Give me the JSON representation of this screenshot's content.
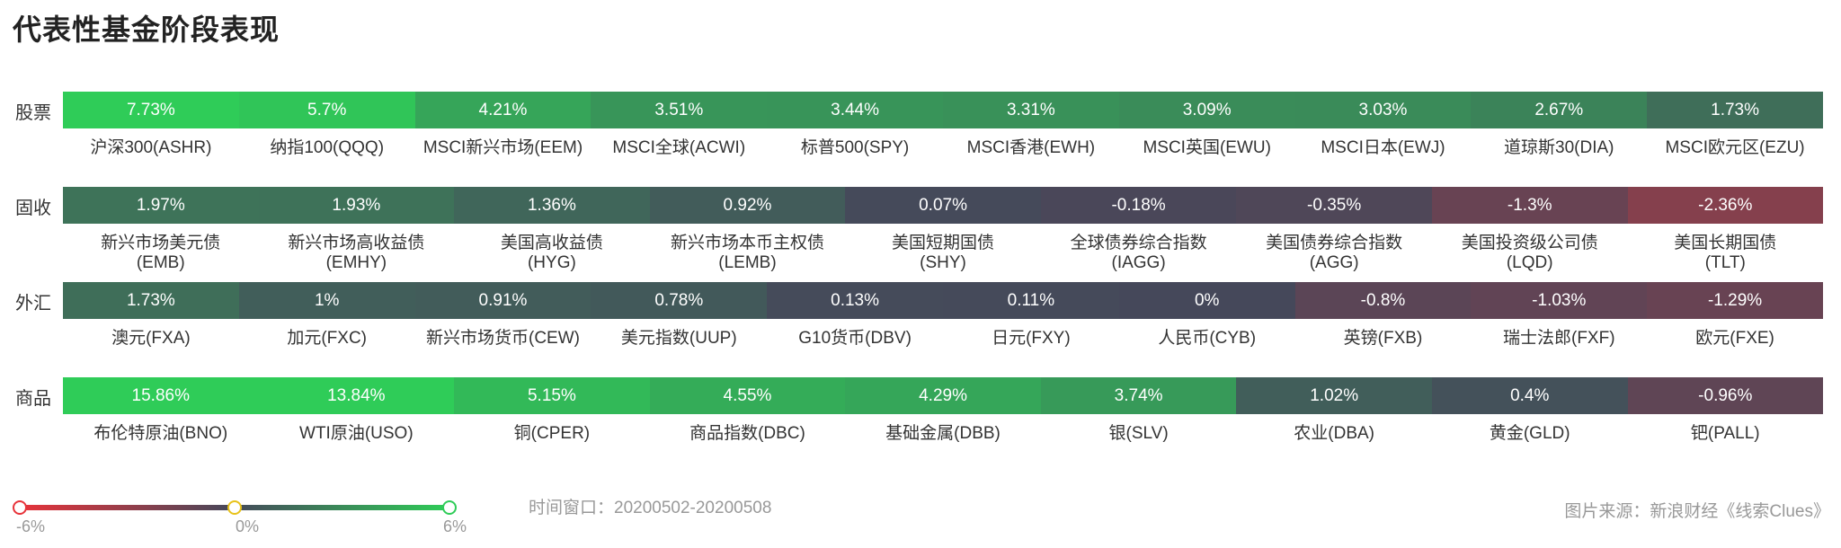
{
  "title": "代表性基金阶段表现",
  "chart_data": {
    "type": "heatmap",
    "title": "代表性基金阶段表现",
    "rows": [
      {
        "label": "股票",
        "cells": [
          {
            "name": [
              "沪深300(ASHR)"
            ],
            "value": 7.73,
            "text": "7.73%"
          },
          {
            "name": [
              "纳指100(QQQ)"
            ],
            "value": 5.7,
            "text": "5.7%"
          },
          {
            "name": [
              "MSCI新兴市场(EEM)"
            ],
            "value": 4.21,
            "text": "4.21%"
          },
          {
            "name": [
              "MSCI全球(ACWI)"
            ],
            "value": 3.51,
            "text": "3.51%"
          },
          {
            "name": [
              "标普500(SPY)"
            ],
            "value": 3.44,
            "text": "3.44%"
          },
          {
            "name": [
              "MSCI香港(EWH)"
            ],
            "value": 3.31,
            "text": "3.31%"
          },
          {
            "name": [
              "MSCI英国(EWU)"
            ],
            "value": 3.09,
            "text": "3.09%"
          },
          {
            "name": [
              "MSCI日本(EWJ)"
            ],
            "value": 3.03,
            "text": "3.03%"
          },
          {
            "name": [
              "道琼斯30(DIA)"
            ],
            "value": 2.67,
            "text": "2.67%"
          },
          {
            "name": [
              "MSCI欧元区(EZU)"
            ],
            "value": 1.73,
            "text": "1.73%"
          }
        ]
      },
      {
        "label": "固收",
        "cells": [
          {
            "name": [
              "新兴市场美元债",
              "(EMB)"
            ],
            "value": 1.97,
            "text": "1.97%"
          },
          {
            "name": [
              "新兴市场高收益债",
              "(EMHY)"
            ],
            "value": 1.93,
            "text": "1.93%"
          },
          {
            "name": [
              "美国高收益债",
              "(HYG)"
            ],
            "value": 1.36,
            "text": "1.36%"
          },
          {
            "name": [
              "新兴市场本币主权债",
              "(LEMB)"
            ],
            "value": 0.92,
            "text": "0.92%"
          },
          {
            "name": [
              "美国短期国债",
              "(SHY)"
            ],
            "value": 0.07,
            "text": "0.07%"
          },
          {
            "name": [
              "全球债券综合指数",
              "(IAGG)"
            ],
            "value": -0.18,
            "text": "-0.18%"
          },
          {
            "name": [
              "美国债券综合指数",
              "(AGG)"
            ],
            "value": -0.35,
            "text": "-0.35%"
          },
          {
            "name": [
              "美国投资级公司债",
              "(LQD)"
            ],
            "value": -1.3,
            "text": "-1.3%"
          },
          {
            "name": [
              "美国长期国债",
              "(TLT)"
            ],
            "value": -2.36,
            "text": "-2.36%"
          }
        ]
      },
      {
        "label": "外汇",
        "cells": [
          {
            "name": [
              "澳元(FXA)"
            ],
            "value": 1.73,
            "text": "1.73%"
          },
          {
            "name": [
              "加元(FXC)"
            ],
            "value": 1,
            "text": "1%"
          },
          {
            "name": [
              "新兴市场货币(CEW)"
            ],
            "value": 0.91,
            "text": "0.91%"
          },
          {
            "name": [
              "美元指数(UUP)"
            ],
            "value": 0.78,
            "text": "0.78%"
          },
          {
            "name": [
              "G10货币(DBV)"
            ],
            "value": 0.13,
            "text": "0.13%"
          },
          {
            "name": [
              "日元(FXY)"
            ],
            "value": 0.11,
            "text": "0.11%"
          },
          {
            "name": [
              "人民币(CYB)"
            ],
            "value": 0,
            "text": "0%"
          },
          {
            "name": [
              "英镑(FXB)"
            ],
            "value": -0.8,
            "text": "-0.8%"
          },
          {
            "name": [
              "瑞士法郎(FXF)"
            ],
            "value": -1.03,
            "text": "-1.03%"
          },
          {
            "name": [
              "欧元(FXE)"
            ],
            "value": -1.29,
            "text": "-1.29%"
          }
        ]
      },
      {
        "label": "商品",
        "cells": [
          {
            "name": [
              "布伦特原油(BNO)"
            ],
            "value": 15.86,
            "text": "15.86%"
          },
          {
            "name": [
              "WTI原油(USO)"
            ],
            "value": 13.84,
            "text": "13.84%"
          },
          {
            "name": [
              "铜(CPER)"
            ],
            "value": 5.15,
            "text": "5.15%"
          },
          {
            "name": [
              "商品指数(DBC)"
            ],
            "value": 4.55,
            "text": "4.55%"
          },
          {
            "name": [
              "基础金属(DBB)"
            ],
            "value": 4.29,
            "text": "4.29%"
          },
          {
            "name": [
              "银(SLV)"
            ],
            "value": 3.74,
            "text": "3.74%"
          },
          {
            "name": [
              "农业(DBA)"
            ],
            "value": 1.02,
            "text": "1.02%"
          },
          {
            "name": [
              "黄金(GLD)"
            ],
            "value": 0.4,
            "text": "0.4%"
          },
          {
            "name": [
              "钯(PALL)"
            ],
            "value": -0.96,
            "text": "-0.96%"
          }
        ]
      }
    ],
    "color_scale": {
      "min": -6,
      "mid": 0,
      "max": 6,
      "min_color": "#e8333a",
      "mid_color": "#45485a",
      "max_color": "#2fcc58",
      "tick_labels": [
        "-6%",
        "0%",
        "6%"
      ]
    }
  },
  "footer": {
    "window_label": "时间窗口：20200502-20200508",
    "source": "图片来源：新浪财经《线索Clues》"
  }
}
